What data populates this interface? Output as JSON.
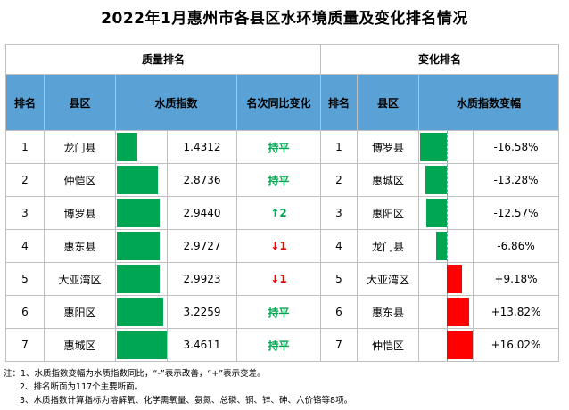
{
  "title": "2022年1月惠州市各县区水环境质量及变化排名情况",
  "groups": {
    "quality": "质量排名",
    "change": "变化排名"
  },
  "headers": {
    "rank": "排名",
    "county": "县区",
    "index": "水质指数",
    "yoy": "名次同比变化",
    "rank2": "排名",
    "county2": "县区",
    "change": "水质指数变幅"
  },
  "rows": [
    {
      "rank": "1",
      "county": "龙门县",
      "index": "1.4312",
      "index_value": 1.4312,
      "yoy": "持平",
      "yoy_type": "same",
      "rank2": "1",
      "county2": "博罗县",
      "change": "-16.58%",
      "change_value": -16.58
    },
    {
      "rank": "2",
      "county": "仲恺区",
      "index": "2.8736",
      "index_value": 2.8736,
      "yoy": "持平",
      "yoy_type": "same",
      "rank2": "2",
      "county2": "惠城区",
      "change": "-13.28%",
      "change_value": -13.28
    },
    {
      "rank": "3",
      "county": "博罗县",
      "index": "2.9440",
      "index_value": 2.944,
      "yoy": "↑2",
      "yoy_type": "up",
      "rank2": "3",
      "county2": "惠阳区",
      "change": "-12.57%",
      "change_value": -12.57
    },
    {
      "rank": "4",
      "county": "惠东县",
      "index": "2.9727",
      "index_value": 2.9727,
      "yoy": "↓1",
      "yoy_type": "down",
      "rank2": "4",
      "county2": "龙门县",
      "change": "-6.86%",
      "change_value": -6.86
    },
    {
      "rank": "5",
      "county": "大亚湾区",
      "index": "2.9923",
      "index_value": 2.9923,
      "yoy": "↓1",
      "yoy_type": "down",
      "rank2": "5",
      "county2": "大亚湾区",
      "change": "+9.18%",
      "change_value": 9.18
    },
    {
      "rank": "6",
      "county": "惠阳区",
      "index": "3.2259",
      "index_value": 3.2259,
      "yoy": "持平",
      "yoy_type": "same",
      "rank2": "6",
      "county2": "惠东县",
      "change": "+13.82%",
      "change_value": 13.82
    },
    {
      "rank": "7",
      "county": "惠城区",
      "index": "3.4611",
      "index_value": 3.4611,
      "yoy": "持平",
      "yoy_type": "same",
      "rank2": "7",
      "county2": "仲恺区",
      "change": "+16.02%",
      "change_value": 16.02
    }
  ],
  "colors": {
    "header_bg": "#5aa2d5",
    "good": "#00a651",
    "bad": "#ff0000"
  },
  "notes": [
    "注：1、水质指数变幅为水质指数同比，“-”表示改善，“+”表示变差。",
    "2、排名断面为117个主要断面。",
    "3、水质指数计算指标为溶解氧、化学需氧量、氨氮、总磷、铜、锌、砷、六价铬等8项。"
  ]
}
